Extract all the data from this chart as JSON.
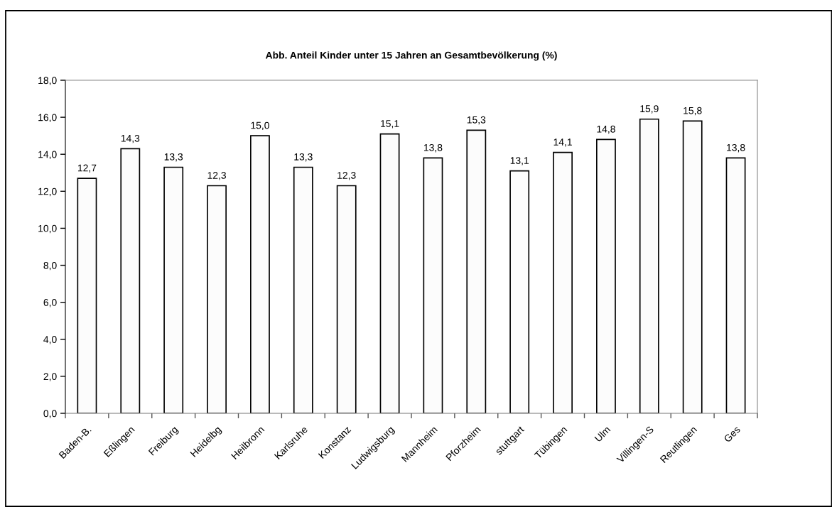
{
  "chart_data": {
    "type": "bar",
    "title": "Abb. Anteil Kinder unter 15 Jahren an Gesamtbevölkerung (%)",
    "categories": [
      "Baden-B.",
      "Eßlingen",
      "Freiburg",
      "Heidelbg",
      "Heilbronn",
      "Karlsruhe",
      "Konstanz",
      "Ludwigsburg",
      "Mannheim",
      "Pforzheim",
      "stuttgart",
      "Tübingen",
      "Ulm",
      "Villingen-S",
      "Reutlingen",
      "Ges"
    ],
    "values": [
      12.7,
      14.3,
      13.3,
      12.3,
      15.0,
      13.3,
      12.3,
      15.1,
      13.8,
      15.3,
      13.1,
      14.1,
      14.8,
      15.9,
      15.8,
      13.8
    ],
    "value_labels": [
      "12,7",
      "14,3",
      "13,3",
      "12,3",
      "15,0",
      "13,3",
      "12,3",
      "15,1",
      "13,8",
      "15,3",
      "13,1",
      "14,1",
      "14,8",
      "15,9",
      "15,8",
      "13,8"
    ],
    "color": "#fcfcfc",
    "ylim": [
      0,
      18
    ],
    "yticks": [
      {
        "value": 0,
        "label": "0,0"
      },
      {
        "value": 2,
        "label": "2,0"
      },
      {
        "value": 4,
        "label": "4,0"
      },
      {
        "value": 6,
        "label": "6,0"
      },
      {
        "value": 8,
        "label": "8,0"
      },
      {
        "value": 10,
        "label": "10,0"
      },
      {
        "value": 12,
        "label": "12,0"
      },
      {
        "value": 14,
        "label": "14,0"
      },
      {
        "value": 16,
        "label": "16,0"
      },
      {
        "value": 18,
        "label": "18,0"
      }
    ],
    "grid": false
  }
}
